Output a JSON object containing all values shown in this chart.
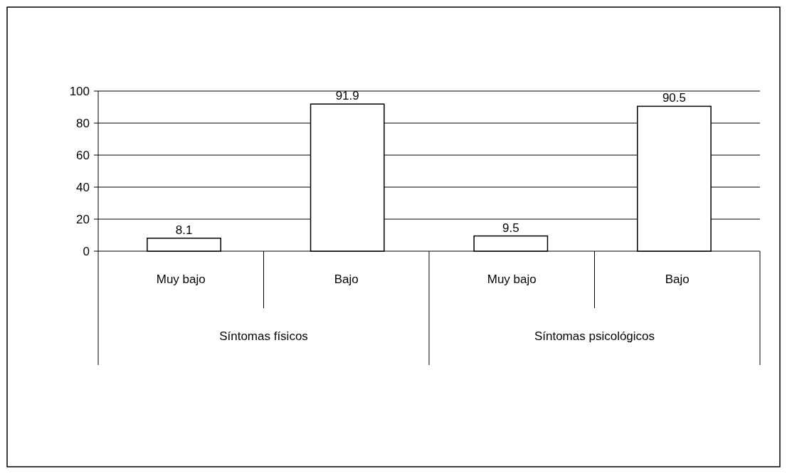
{
  "chart_data": {
    "type": "bar",
    "categories": [
      "Muy bajo",
      "Bajo",
      "Muy bajo",
      "Bajo"
    ],
    "values": [
      8.1,
      91.9,
      9.5,
      90.5
    ],
    "color": "#ffffff",
    "ylim": [
      0,
      100
    ],
    "yticks": [
      0,
      20,
      40,
      60,
      80,
      100
    ],
    "grid": "y",
    "data_labels": true,
    "annotations": [
      "Síntomas físicos",
      "Síntomas psicológicos"
    ]
  }
}
